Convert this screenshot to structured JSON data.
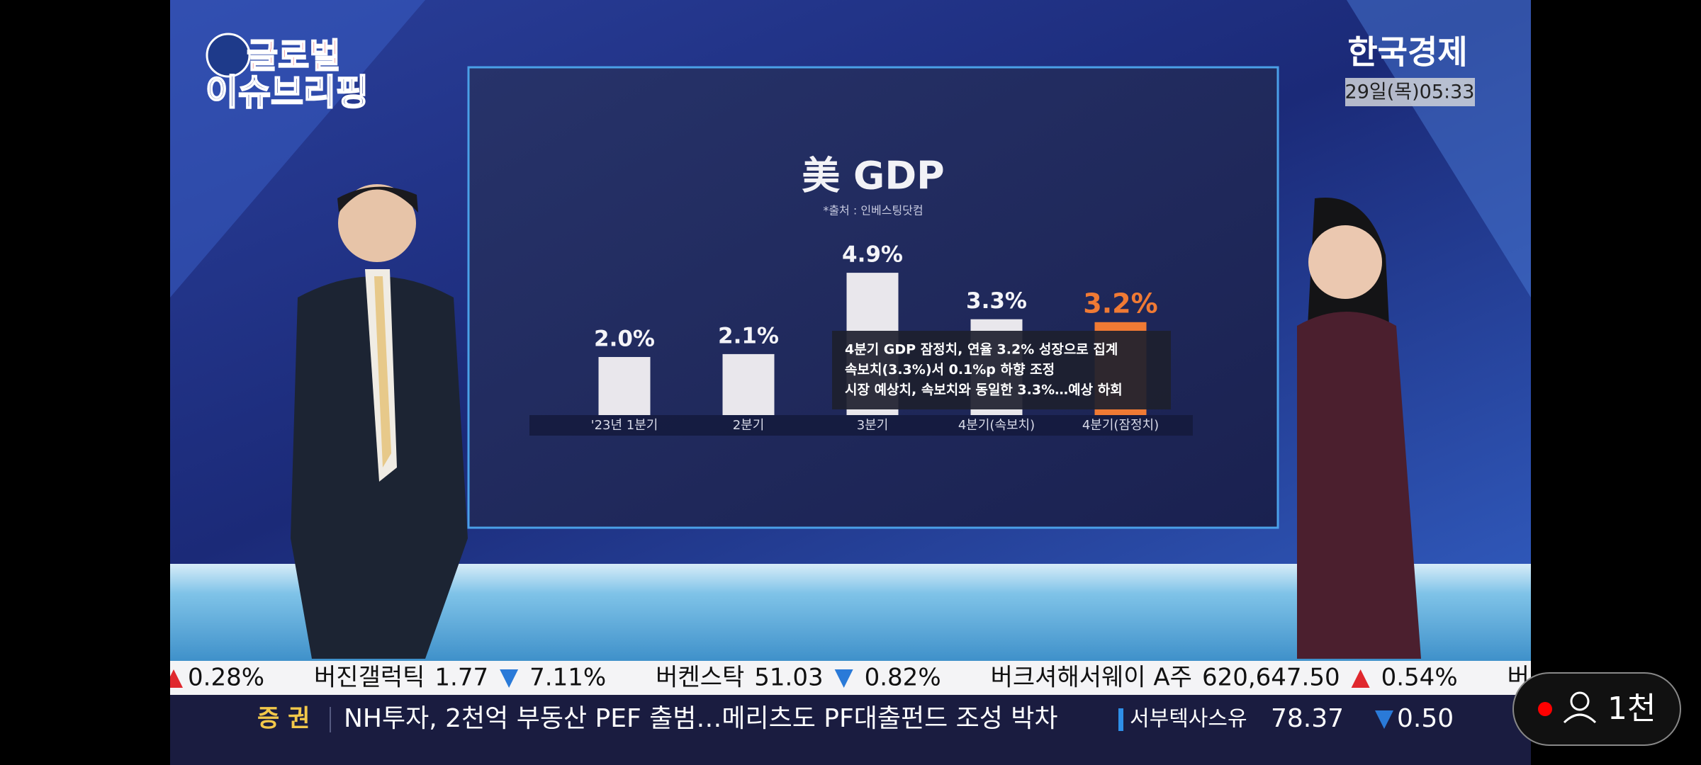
{
  "logo": {
    "line1": "글로벌",
    "line2": "이슈브리핑"
  },
  "channel": {
    "name": "한국경제",
    "datetime": "29일(목)05:33"
  },
  "chart_data": {
    "type": "bar",
    "title": "美 GDP",
    "subtitle": "*출처 : 인베스팅닷컴",
    "categories": [
      "'23년 1분기",
      "2분기",
      "3분기",
      "4분기(속보치)",
      "4분기(잠정치)"
    ],
    "values": [
      2.0,
      2.1,
      4.9,
      3.3,
      3.2
    ],
    "value_labels": [
      "2.0%",
      "2.1%",
      "4.9%",
      "3.3%",
      "3.2%"
    ],
    "colors": [
      "#e9e7ec",
      "#e9e7ec",
      "#e9e7ec",
      "#e9e7ec",
      "#f07a34"
    ],
    "annotation": [
      "4분기 GDP 잠정치, 연율 3.2% 성장으로 집계",
      "속보치(3.3%)서 0.1%p 하향 조정",
      "시장 예상치, 속보치와 동일한 3.3%…예상 하회"
    ]
  },
  "ticker": {
    "items": [
      {
        "direction": "up",
        "change": "0.28%"
      },
      {
        "name": "버진갤럭틱",
        "price": "1.77",
        "direction": "down",
        "change": "7.11%"
      },
      {
        "name": "버켄스탁",
        "price": "51.03",
        "direction": "down",
        "change": "0.82%"
      },
      {
        "name": "버크셔해서웨이 A주",
        "price": "620,647.50",
        "direction": "up",
        "change": "0.54%"
      },
      {
        "name": "버크셔해"
      }
    ]
  },
  "headline": {
    "label": "증 권",
    "text": "NH투자, 2천억 부동산 PEF 출범…메리츠도 PF대출펀드 조성 박차"
  },
  "quote": {
    "name": "서부텍사스유",
    "price": "78.37",
    "direction": "down",
    "change": "0.50"
  },
  "live": {
    "viewers": "1천"
  }
}
